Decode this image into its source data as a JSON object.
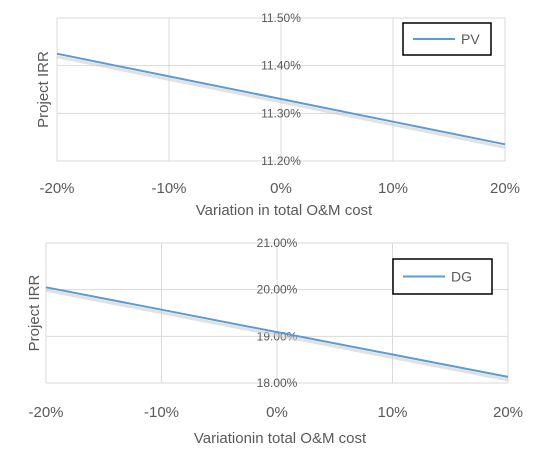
{
  "chart_data": [
    {
      "type": "line",
      "title": "",
      "xlabel": "Variation in total O&M cost",
      "ylabel": "Project IRR",
      "x": [
        -20,
        -10,
        0,
        10,
        20
      ],
      "x_tick_labels": [
        "-20%",
        "-10%",
        "0%",
        "10%",
        "20%"
      ],
      "y_tick_labels": [
        "11.20%",
        "11.30%",
        "11.40%",
        "11.50%"
      ],
      "y_ticks": [
        11.2,
        11.3,
        11.4,
        11.5
      ],
      "ylim": [
        11.2,
        11.5
      ],
      "xlim": [
        -20,
        20
      ],
      "series": [
        {
          "name": "PV",
          "values": [
            11.425,
            11.3775,
            11.33,
            11.2825,
            11.235
          ],
          "color": "#5b9bd5"
        }
      ],
      "grid": true,
      "legend_position": "top-right"
    },
    {
      "type": "line",
      "title": "",
      "xlabel": "Variationin total O&M cost",
      "ylabel": "Project IRR",
      "x": [
        -20,
        -10,
        0,
        10,
        20
      ],
      "x_tick_labels": [
        "-20%",
        "-10%",
        "0%",
        "10%",
        "20%"
      ],
      "y_tick_labels": [
        "18.00%",
        "19.00%",
        "20.00%",
        "21.00%"
      ],
      "y_ticks": [
        18,
        19,
        20,
        21
      ],
      "ylim": [
        18,
        21
      ],
      "xlim": [
        -20,
        20
      ],
      "series": [
        {
          "name": "DG",
          "values": [
            20.05,
            19.57,
            19.09,
            18.61,
            18.13
          ],
          "color": "#5b9bd5"
        }
      ],
      "grid": true,
      "legend_position": "top-right"
    }
  ]
}
